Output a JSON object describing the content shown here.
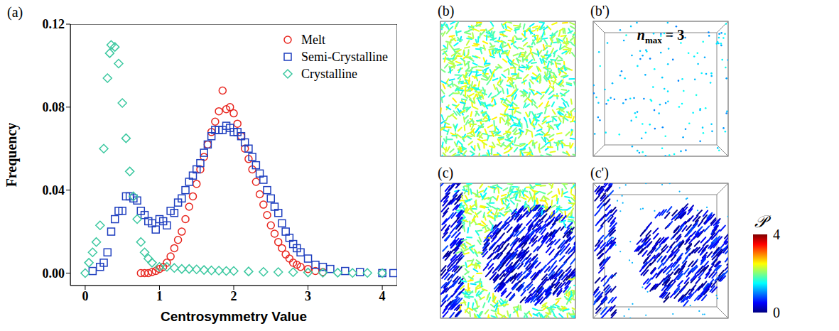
{
  "chart_data": {
    "type": "scatter",
    "label": "(a)",
    "xlabel": "Centrosymmetry Value",
    "ylabel": "Frequency",
    "xlim": [
      -0.2,
      4.2
    ],
    "xticks": [
      0,
      1,
      2,
      3,
      4
    ],
    "ylim": [
      -0.006,
      0.12
    ],
    "yticks": [
      {
        "value": 0,
        "label": "0.00"
      },
      {
        "value": 0.04,
        "label": "0.04"
      },
      {
        "value": 0.08,
        "label": "0.08"
      },
      {
        "value": 0.12,
        "label": "0.12"
      }
    ],
    "legend": "upper right",
    "grid": false,
    "series": [
      {
        "name": "Melt",
        "color": "#e8261f",
        "marker": "circle",
        "x": [
          0.75,
          0.8,
          0.85,
          0.9,
          0.95,
          1.0,
          1.05,
          1.1,
          1.15,
          1.2,
          1.25,
          1.3,
          1.35,
          1.4,
          1.45,
          1.5,
          1.55,
          1.6,
          1.65,
          1.7,
          1.75,
          1.8,
          1.85,
          1.9,
          1.95,
          2.0,
          2.05,
          2.1,
          2.15,
          2.2,
          2.25,
          2.3,
          2.35,
          2.4,
          2.45,
          2.5,
          2.55,
          2.6,
          2.65,
          2.7,
          2.75,
          2.8,
          2.85,
          2.9,
          3.0,
          3.1,
          3.2
        ],
        "values": [
          0,
          0,
          0,
          0.0005,
          0.001,
          0.002,
          0.003,
          0.005,
          0.008,
          0.012,
          0.016,
          0.02,
          0.026,
          0.032,
          0.037,
          0.043,
          0.05,
          0.056,
          0.062,
          0.068,
          0.073,
          0.078,
          0.088,
          0.079,
          0.08,
          0.077,
          0.072,
          0.066,
          0.06,
          0.055,
          0.05,
          0.044,
          0.038,
          0.033,
          0.028,
          0.023,
          0.019,
          0.015,
          0.012,
          0.009,
          0.007,
          0.005,
          0.004,
          0.003,
          0.002,
          0.001,
          0.0005
        ]
      },
      {
        "name": "Semi-Crystalline",
        "color": "#1f3fbf",
        "marker": "square",
        "x": [
          0.1,
          0.2,
          0.25,
          0.3,
          0.35,
          0.4,
          0.45,
          0.5,
          0.55,
          0.6,
          0.65,
          0.7,
          0.75,
          0.8,
          0.85,
          0.9,
          0.95,
          1.0,
          1.05,
          1.1,
          1.15,
          1.2,
          1.25,
          1.3,
          1.35,
          1.4,
          1.45,
          1.5,
          1.55,
          1.6,
          1.65,
          1.7,
          1.75,
          1.8,
          1.85,
          1.9,
          1.95,
          2.0,
          2.05,
          2.1,
          2.15,
          2.2,
          2.25,
          2.3,
          2.35,
          2.4,
          2.45,
          2.5,
          2.55,
          2.6,
          2.65,
          2.7,
          2.75,
          2.8,
          2.85,
          2.9,
          3.0,
          3.1,
          3.2,
          3.3,
          3.5,
          3.7,
          4.0,
          4.15
        ],
        "values": [
          0.001,
          0.003,
          0.005,
          0.01,
          0.02,
          0.026,
          0.03,
          0.03,
          0.037,
          0.037,
          0.036,
          0.035,
          0.03,
          0.028,
          0.025,
          0.024,
          0.021,
          0.026,
          0.025,
          0.023,
          0.03,
          0.029,
          0.034,
          0.036,
          0.04,
          0.044,
          0.047,
          0.05,
          0.053,
          0.058,
          0.062,
          0.066,
          0.069,
          0.069,
          0.069,
          0.071,
          0.07,
          0.068,
          0.068,
          0.066,
          0.063,
          0.06,
          0.056,
          0.052,
          0.048,
          0.045,
          0.04,
          0.036,
          0.032,
          0.029,
          0.024,
          0.02,
          0.017,
          0.014,
          0.012,
          0.01,
          0.007,
          0.004,
          0.003,
          0.002,
          0.001,
          0.0005,
          0,
          0
        ]
      },
      {
        "name": "Crystalline",
        "color": "#3cc8a0",
        "marker": "diamond",
        "x": [
          0,
          0.05,
          0.1,
          0.15,
          0.2,
          0.25,
          0.3,
          0.33,
          0.35,
          0.4,
          0.45,
          0.5,
          0.55,
          0.6,
          0.65,
          0.7,
          0.75,
          0.8,
          0.85,
          0.9,
          1.0,
          1.1,
          1.2,
          1.3,
          1.4,
          1.5,
          1.6,
          1.7,
          1.8,
          1.9,
          2.0,
          2.2,
          2.4,
          2.6,
          2.8,
          3.0,
          3.2,
          3.4,
          3.6,
          3.8,
          4.0
        ],
        "values": [
          0,
          0.005,
          0.01,
          0.015,
          0.023,
          0.06,
          0.094,
          0.106,
          0.11,
          0.109,
          0.101,
          0.082,
          0.065,
          0.049,
          0.037,
          0.026,
          0.015,
          0.01,
          0.007,
          0.005,
          0.003,
          0.003,
          0.0025,
          0.002,
          0.002,
          0.0018,
          0.0015,
          0.0013,
          0.0012,
          0.001,
          0.001,
          0.0008,
          0.0006,
          0.0005,
          0.0004,
          0.0003,
          0.0002,
          0.0002,
          0.0001,
          0.0001,
          0
        ]
      }
    ]
  },
  "panels": [
    {
      "label": "(b)"
    },
    {
      "label": "(b')",
      "annotation": {
        "symbol": "n",
        "subscript": "max",
        "text": "= 3"
      }
    },
    {
      "label": "(c)"
    },
    {
      "label": "(c')"
    }
  ],
  "colorbar": {
    "label": "𝒫",
    "range": [
      0,
      4
    ],
    "ticks": [
      0,
      4
    ]
  }
}
